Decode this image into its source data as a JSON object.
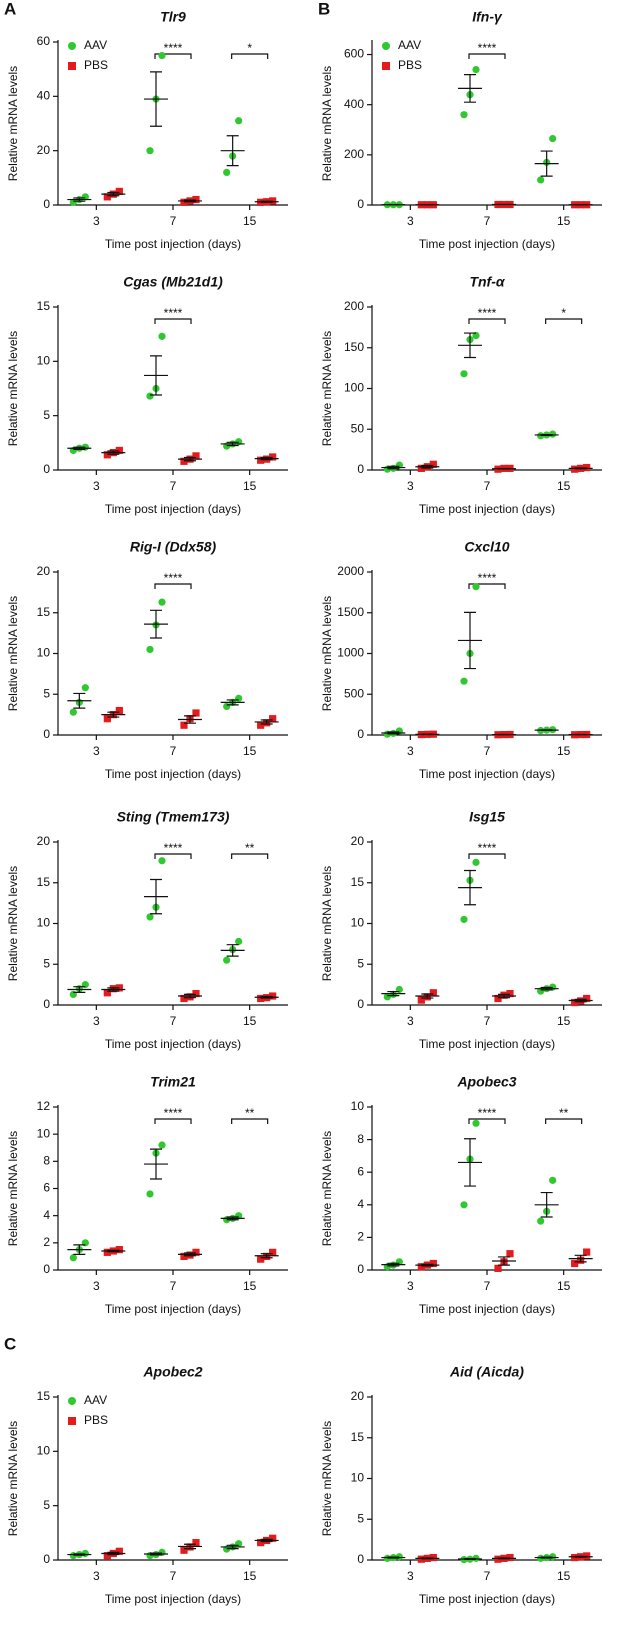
{
  "groups": [
    {
      "name": "AAV",
      "color": "#2fc82f",
      "marker": "circle"
    },
    {
      "name": "PBS",
      "color": "#e41a1c",
      "marker": "square"
    }
  ],
  "chart_data": [
    {
      "type": "dot",
      "panel": "A",
      "title": "Tlr9",
      "legend": true,
      "y_label": "Relative mRNA levels",
      "x_label": "Time post injection (days)",
      "categories": [
        "3",
        "7",
        "15"
      ],
      "ylim": [
        0,
        60
      ],
      "yticks": [
        0,
        20,
        40,
        60
      ],
      "significance": [
        null,
        "****",
        "*"
      ],
      "series": [
        {
          "values": [
            [
              1,
              2,
              3
            ],
            [
              20,
              39,
              55
            ],
            [
              12,
              18,
              31
            ]
          ],
          "mean": [
            2,
            39,
            20
          ],
          "sem": [
            0.6,
            10,
            5.5
          ]
        },
        {
          "values": [
            [
              3,
              4,
              5
            ],
            [
              1,
              1.5,
              2
            ],
            [
              1,
              1.2,
              1.5
            ]
          ],
          "mean": [
            4,
            1.5,
            1.2
          ],
          "sem": [
            0.6,
            0.3,
            0.2
          ]
        }
      ]
    },
    {
      "type": "dot",
      "panel": "B",
      "title": "Ifn-γ",
      "legend": true,
      "y_label": "Relative mRNA levels",
      "x_label": "Time post injection (days)",
      "categories": [
        "3",
        "7",
        "15"
      ],
      "ylim": [
        0,
        650
      ],
      "yticks": [
        0,
        200,
        400,
        600
      ],
      "significance": [
        null,
        "****",
        null
      ],
      "series": [
        {
          "values": [
            [
              1,
              1,
              1
            ],
            [
              360,
              440,
              540
            ],
            [
              100,
              170,
              265
            ]
          ],
          "mean": [
            1,
            465,
            165
          ],
          "sem": [
            0,
            55,
            50
          ]
        },
        {
          "values": [
            [
              1,
              1,
              1
            ],
            [
              2,
              2,
              2
            ],
            [
              1,
              1,
              1
            ]
          ],
          "mean": [
            1,
            2,
            1
          ],
          "sem": [
            0,
            0,
            0
          ]
        }
      ]
    },
    {
      "type": "dot",
      "title": "Cgas (Mb21d1)",
      "y_label": "Relative mRNA levels",
      "x_label": "Time post injection (days)",
      "categories": [
        "3",
        "7",
        "15"
      ],
      "ylim": [
        0,
        15
      ],
      "yticks": [
        0,
        5,
        10,
        15
      ],
      "significance": [
        null,
        "****",
        null
      ],
      "series": [
        {
          "values": [
            [
              1.8,
              2,
              2.1
            ],
            [
              6.8,
              7.5,
              12.3
            ],
            [
              2.2,
              2.4,
              2.6
            ]
          ],
          "mean": [
            2,
            8.7,
            2.4
          ],
          "sem": [
            0.1,
            1.8,
            0.15
          ]
        },
        {
          "values": [
            [
              1.4,
              1.6,
              1.8
            ],
            [
              0.8,
              1,
              1.3
            ],
            [
              0.9,
              1,
              1.2
            ]
          ],
          "mean": [
            1.6,
            1,
            1.05
          ],
          "sem": [
            0.15,
            0.15,
            0.1
          ]
        }
      ]
    },
    {
      "type": "dot",
      "title": "Tnf-α",
      "y_label": "Relative mRNA levels",
      "x_label": "Time post injection (days)",
      "categories": [
        "3",
        "7",
        "15"
      ],
      "ylim": [
        0,
        200
      ],
      "yticks": [
        0,
        50,
        100,
        150,
        200
      ],
      "significance": [
        null,
        "****",
        "*"
      ],
      "series": [
        {
          "values": [
            [
              1,
              2,
              6
            ],
            [
              118,
              160,
              165
            ],
            [
              42,
              43,
              44
            ]
          ],
          "mean": [
            3,
            153,
            43
          ],
          "sem": [
            1.5,
            15,
            0.5
          ]
        },
        {
          "values": [
            [
              2,
              4,
              7
            ],
            [
              1,
              2,
              2
            ],
            [
              1,
              2,
              3
            ]
          ],
          "mean": [
            4,
            1.5,
            2
          ],
          "sem": [
            1.5,
            0.3,
            0.5
          ]
        }
      ]
    },
    {
      "type": "dot",
      "title": "Rig-I (Ddx58)",
      "y_label": "Relative mRNA levels",
      "x_label": "Time post injection (days)",
      "categories": [
        "3",
        "7",
        "15"
      ],
      "ylim": [
        0,
        20
      ],
      "yticks": [
        0,
        5,
        10,
        15,
        20
      ],
      "significance": [
        null,
        "****",
        null
      ],
      "series": [
        {
          "values": [
            [
              2.8,
              4,
              5.8
            ],
            [
              10.5,
              13.5,
              16.3
            ],
            [
              3.5,
              4,
              4.5
            ]
          ],
          "mean": [
            4.2,
            13.6,
            4
          ],
          "sem": [
            0.9,
            1.7,
            0.3
          ]
        },
        {
          "values": [
            [
              2,
              2.5,
              3
            ],
            [
              1.2,
              2,
              2.7
            ],
            [
              1.2,
              1.5,
              2
            ]
          ],
          "mean": [
            2.5,
            1.9,
            1.6
          ],
          "sem": [
            0.3,
            0.45,
            0.25
          ]
        }
      ]
    },
    {
      "type": "dot",
      "title": "Cxcl10",
      "y_label": "Relative mRNA levels",
      "x_label": "Time post injection (days)",
      "categories": [
        "3",
        "7",
        "15"
      ],
      "ylim": [
        0,
        2000
      ],
      "yticks": [
        0,
        500,
        1000,
        1500,
        2000
      ],
      "significance": [
        null,
        "****",
        null
      ],
      "series": [
        {
          "values": [
            [
              10,
              20,
              50
            ],
            [
              660,
              1000,
              1820
            ],
            [
              55,
              60,
              65
            ]
          ],
          "mean": [
            25,
            1160,
            60
          ],
          "sem": [
            12,
            345,
            3
          ]
        },
        {
          "values": [
            [
              5,
              8,
              10
            ],
            [
              3,
              5,
              6
            ],
            [
              3,
              5,
              6
            ]
          ],
          "mean": [
            8,
            5,
            5
          ],
          "sem": [
            2,
            1,
            1
          ]
        }
      ]
    },
    {
      "type": "dot",
      "title": "Sting (Tmem173)",
      "y_label": "Relative mRNA levels",
      "x_label": "Time post injection (days)",
      "categories": [
        "3",
        "7",
        "15"
      ],
      "ylim": [
        0,
        20
      ],
      "yticks": [
        0,
        5,
        10,
        15,
        20
      ],
      "significance": [
        null,
        "****",
        "**"
      ],
      "series": [
        {
          "values": [
            [
              1.3,
              2,
              2.5
            ],
            [
              10.8,
              12,
              17.7
            ],
            [
              5.5,
              6.8,
              7.8
            ]
          ],
          "mean": [
            1.9,
            13.3,
            6.7
          ],
          "sem": [
            0.35,
            2.1,
            0.7
          ]
        },
        {
          "values": [
            [
              1.5,
              2,
              2.1
            ],
            [
              0.8,
              1,
              1.4
            ],
            [
              0.8,
              0.9,
              1.1
            ]
          ],
          "mean": [
            1.9,
            1.1,
            0.95
          ],
          "sem": [
            0.2,
            0.2,
            0.1
          ]
        }
      ]
    },
    {
      "type": "dot",
      "title": "Isg15",
      "y_label": "Relative mRNA levels",
      "x_label": "Time post injection (days)",
      "categories": [
        "3",
        "7",
        "15"
      ],
      "ylim": [
        0,
        20
      ],
      "yticks": [
        0,
        5,
        10,
        15,
        20
      ],
      "significance": [
        null,
        "****",
        null
      ],
      "series": [
        {
          "values": [
            [
              1,
              1.3,
              1.9
            ],
            [
              10.5,
              15.3,
              17.5
            ],
            [
              1.7,
              2,
              2.2
            ]
          ],
          "mean": [
            1.4,
            14.4,
            2
          ],
          "sem": [
            0.25,
            2.1,
            0.15
          ]
        },
        {
          "values": [
            [
              0.6,
              1,
              1.5
            ],
            [
              0.8,
              1.2,
              1.4
            ],
            [
              0.3,
              0.5,
              0.8
            ]
          ],
          "mean": [
            1.1,
            1.1,
            0.55
          ],
          "sem": [
            0.25,
            0.2,
            0.15
          ]
        }
      ]
    },
    {
      "type": "dot",
      "title": "Trim21",
      "y_label": "Relative mRNA levels",
      "x_label": "Time post injection (days)",
      "categories": [
        "3",
        "7",
        "15"
      ],
      "ylim": [
        0,
        12
      ],
      "yticks": [
        0,
        2,
        4,
        6,
        8,
        10,
        12
      ],
      "significance": [
        null,
        "****",
        "**"
      ],
      "series": [
        {
          "values": [
            [
              0.9,
              1.5,
              2
            ],
            [
              5.6,
              8.6,
              9.2
            ],
            [
              3.7,
              3.8,
              4
            ]
          ],
          "mean": [
            1.5,
            7.8,
            3.8
          ],
          "sem": [
            0.35,
            1.1,
            0.1
          ]
        },
        {
          "values": [
            [
              1.3,
              1.4,
              1.5
            ],
            [
              1,
              1.1,
              1.3
            ],
            [
              0.8,
              1,
              1.3
            ]
          ],
          "mean": [
            1.4,
            1.15,
            1.05
          ],
          "sem": [
            0.05,
            0.1,
            0.15
          ]
        }
      ]
    },
    {
      "type": "dot",
      "title": "Apobec3",
      "y_label": "Relative mRNA levels",
      "x_label": "Time post injection (days)",
      "categories": [
        "3",
        "7",
        "15"
      ],
      "ylim": [
        0,
        10
      ],
      "yticks": [
        0,
        2,
        4,
        6,
        8,
        10
      ],
      "significance": [
        null,
        "****",
        "**"
      ],
      "series": [
        {
          "values": [
            [
              0.2,
              0.3,
              0.5
            ],
            [
              4,
              6.8,
              9
            ],
            [
              3,
              3.6,
              5.5
            ]
          ],
          "mean": [
            0.33,
            6.6,
            4
          ],
          "sem": [
            0.08,
            1.45,
            0.75
          ]
        },
        {
          "values": [
            [
              0.2,
              0.3,
              0.4
            ],
            [
              0.1,
              0.5,
              1
            ],
            [
              0.4,
              0.6,
              1.1
            ]
          ],
          "mean": [
            0.3,
            0.55,
            0.7
          ],
          "sem": [
            0.05,
            0.25,
            0.2
          ]
        }
      ]
    },
    {
      "type": "dot",
      "panel": "C",
      "title": "Apobec2",
      "legend": true,
      "y_label": "Relative mRNA levels",
      "x_label": "Time post injection (days)",
      "categories": [
        "3",
        "7",
        "15"
      ],
      "ylim": [
        0,
        15
      ],
      "yticks": [
        0,
        5,
        10,
        15
      ],
      "significance": [
        null,
        null,
        null
      ],
      "series": [
        {
          "values": [
            [
              0.4,
              0.5,
              0.6
            ],
            [
              0.4,
              0.5,
              0.7
            ],
            [
              1,
              1.2,
              1.5
            ]
          ],
          "mean": [
            0.5,
            0.55,
            1.2
          ],
          "sem": [
            0.05,
            0.08,
            0.15
          ]
        },
        {
          "values": [
            [
              0.4,
              0.6,
              0.8
            ],
            [
              0.9,
              1.2,
              1.6
            ],
            [
              1.6,
              1.8,
              2
            ]
          ],
          "mean": [
            0.6,
            1.25,
            1.8
          ],
          "sem": [
            0.1,
            0.2,
            0.1
          ]
        }
      ]
    },
    {
      "type": "dot",
      "title": "Aid (Aicda)",
      "y_label": "Relative mRNA levels",
      "x_label": "Time post injection (days)",
      "categories": [
        "3",
        "7",
        "15"
      ],
      "ylim": [
        0,
        20
      ],
      "yticks": [
        0,
        5,
        10,
        15,
        20
      ],
      "significance": [
        null,
        null,
        null
      ],
      "series": [
        {
          "values": [
            [
              0.2,
              0.3,
              0.4
            ],
            [
              0.05,
              0.1,
              0.2
            ],
            [
              0.2,
              0.3,
              0.4
            ]
          ],
          "mean": [
            0.3,
            0.12,
            0.3
          ],
          "sem": [
            0.05,
            0.04,
            0.05
          ]
        },
        {
          "values": [
            [
              0.1,
              0.2,
              0.3
            ],
            [
              0.1,
              0.2,
              0.3
            ],
            [
              0.3,
              0.4,
              0.5
            ]
          ],
          "mean": [
            0.2,
            0.2,
            0.4
          ],
          "sem": [
            0.05,
            0.05,
            0.05
          ]
        }
      ]
    }
  ]
}
